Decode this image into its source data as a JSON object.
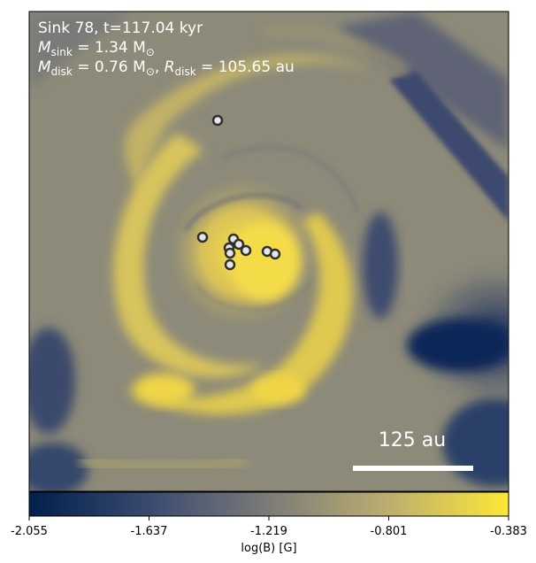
{
  "panel": {
    "line1": "Sink 78, t=117.04 kyr",
    "line2_symbol": "M",
    "line2_sub": "sink",
    "line2_value": " = 1.34 M",
    "line2_unit_sub": "⊙",
    "line3_symbol": "M",
    "line3_sub": "disk",
    "line3_value": " = 0.76 M",
    "line3_unit_sub": "⊙",
    "line3_sep": ", ",
    "line3_symbol2": "R",
    "line3_sub2": "disk",
    "line3_value2": " = 105.65 au"
  },
  "scalebar": {
    "label": "125 au"
  },
  "colorbar": {
    "label": "log(B) [G]",
    "ticks": [
      "-2.055",
      "-1.637",
      "-1.219",
      "-0.801",
      "-0.383"
    ],
    "range": [
      -2.055,
      -0.383
    ],
    "colors": {
      "low": "#00204c",
      "mid": "#7c7b78",
      "high": "#fde737"
    }
  }
}
